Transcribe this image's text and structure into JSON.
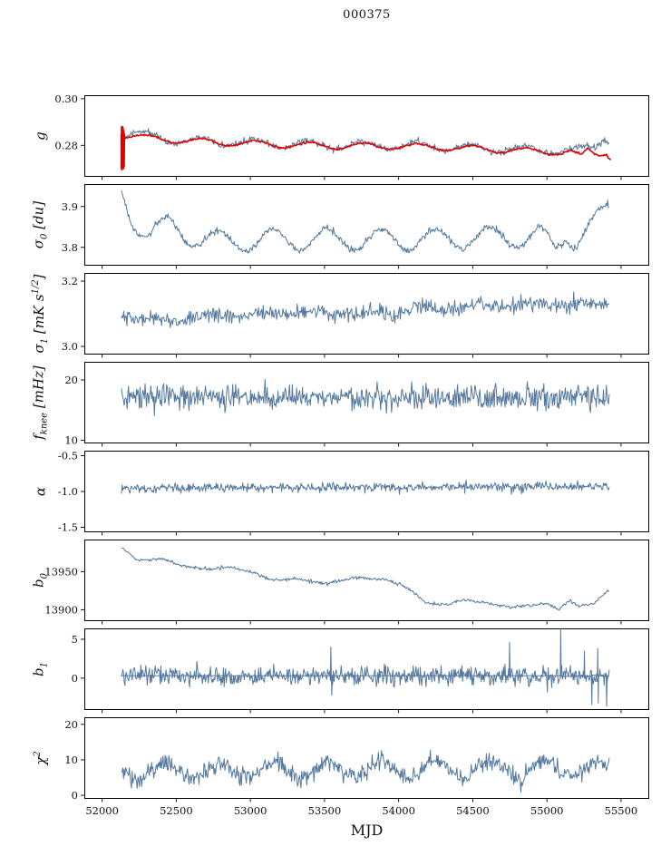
{
  "chart_data": {
    "type": "line",
    "title": "000375",
    "xlabel": "MJD",
    "legend": "none",
    "grid": false,
    "line_color": "#54789e",
    "fit_color": "#e10000",
    "axis_color": "#000000",
    "x_axis": {
      "lim": [
        51880,
        55690
      ],
      "ticks": [
        {
          "v": 52000,
          "label": "52000"
        },
        {
          "v": 52500,
          "label": "52500"
        },
        {
          "v": 53000,
          "label": "53000"
        },
        {
          "v": 53500,
          "label": "53500"
        },
        {
          "v": 54000,
          "label": "54000"
        },
        {
          "v": 54500,
          "label": "54500"
        },
        {
          "v": 55000,
          "label": "55000"
        },
        {
          "v": 55500,
          "label": "55500"
        }
      ]
    },
    "panels": [
      {
        "id": "g",
        "ylabel": [
          {
            "t": "g"
          }
        ],
        "ylim": [
          0.2665,
          0.3015
        ],
        "yticks": [
          {
            "v": 0.28,
            "label": "0.28"
          },
          {
            "v": 0.3,
            "label": "0.30"
          }
        ],
        "series": [
          {
            "name": "gain",
            "color": "#54789e",
            "width": 1,
            "mode": "sampled",
            "n": 650,
            "noise": 0.0007,
            "seed": 11,
            "osc": {
              "amp": 0.0017,
              "period": 365,
              "phase": 52205
            },
            "trend": [
              [
                52130,
                0.2846
              ],
              [
                52200,
                0.2852
              ],
              [
                52350,
                0.2838
              ],
              [
                52600,
                0.282
              ],
              [
                52900,
                0.2812
              ],
              [
                53200,
                0.2806
              ],
              [
                53600,
                0.28
              ],
              [
                54000,
                0.28
              ],
              [
                54400,
                0.2792
              ],
              [
                54800,
                0.2782
              ],
              [
                55050,
                0.2778
              ],
              [
                55200,
                0.2778
              ],
              [
                55320,
                0.279
              ],
              [
                55380,
                0.2836
              ],
              [
                55420,
                0.2824
              ]
            ]
          },
          {
            "name": "fit-spike",
            "color": "#e10000",
            "width": 1.6,
            "mode": "anchors",
            "trend": [
              [
                52128,
                0.285
              ],
              [
                52129,
                0.27
              ],
              [
                52131,
                0.288
              ],
              [
                52133,
                0.2695
              ],
              [
                52135,
                0.2875
              ],
              [
                52137,
                0.27
              ],
              [
                52139,
                0.288
              ],
              [
                52141,
                0.2705
              ],
              [
                52143,
                0.287
              ],
              [
                52145,
                0.27
              ],
              [
                52147,
                0.286
              ],
              [
                52149,
                0.271
              ],
              [
                52151,
                0.285
              ]
            ]
          },
          {
            "name": "fit",
            "color": "#e10000",
            "width": 1.6,
            "mode": "sampled",
            "n": 460,
            "noise": 0.0002,
            "seed": 12,
            "osc": {
              "amp": 0.0013,
              "period": 365,
              "phase": 52215
            },
            "trend": [
              [
                52128,
                0.2848
              ],
              [
                52300,
                0.2832
              ],
              [
                52600,
                0.2818
              ],
              [
                52900,
                0.281
              ],
              [
                53200,
                0.2803
              ],
              [
                53600,
                0.2797
              ],
              [
                54000,
                0.2797
              ],
              [
                54400,
                0.2789
              ],
              [
                54800,
                0.2778
              ],
              [
                55050,
                0.2772
              ],
              [
                55150,
                0.2776
              ],
              [
                55230,
                0.2748
              ],
              [
                55280,
                0.2778
              ],
              [
                55340,
                0.276
              ],
              [
                55400,
                0.2772
              ],
              [
                55430,
                0.275
              ]
            ]
          }
        ]
      },
      {
        "id": "sigma0",
        "ylabel": [
          {
            "t": "σ"
          },
          {
            "t": "0",
            "style": "sub"
          },
          {
            "t": " [du]"
          }
        ],
        "ylim": [
          3.755,
          3.955
        ],
        "yticks": [
          {
            "v": 3.8,
            "label": "3.8"
          },
          {
            "v": 3.9,
            "label": "3.9"
          }
        ],
        "series": [
          {
            "name": "sigma0",
            "color": "#54789e",
            "width": 1,
            "mode": "sampled",
            "n": 650,
            "noise": 0.004,
            "seed": 21,
            "osc": {
              "amp": 0.026,
              "period": 365,
              "phase": 52330
            },
            "trend": [
              [
                52130,
                3.932
              ],
              [
                52200,
                3.874
              ],
              [
                52300,
                3.836
              ],
              [
                52450,
                3.852
              ],
              [
                52600,
                3.828
              ],
              [
                52800,
                3.812
              ],
              [
                53100,
                3.818
              ],
              [
                53500,
                3.82
              ],
              [
                53900,
                3.818
              ],
              [
                54300,
                3.82
              ],
              [
                54700,
                3.826
              ],
              [
                54950,
                3.828
              ],
              [
                55060,
                3.796
              ],
              [
                55130,
                3.836
              ],
              [
                55200,
                3.818
              ],
              [
                55300,
                3.85
              ],
              [
                55420,
                3.898
              ]
            ]
          }
        ]
      },
      {
        "id": "sigma1",
        "ylabel": [
          {
            "t": "σ"
          },
          {
            "t": "1",
            "style": "sub"
          },
          {
            "t": " [mK s"
          },
          {
            "t": "1/2",
            "style": "sup"
          },
          {
            "t": "]"
          }
        ],
        "ylim": [
          2.975,
          3.225
        ],
        "yticks": [
          {
            "v": 3.0,
            "label": "3.0"
          },
          {
            "v": 3.2,
            "label": "3.2"
          }
        ],
        "series": [
          {
            "name": "sigma1",
            "color": "#54789e",
            "width": 1,
            "mode": "sampled",
            "n": 620,
            "noise": 0.012,
            "seed": 31,
            "osc": {
              "amp": 0.006,
              "period": 365,
              "phase": 52250
            },
            "trend": [
              [
                52130,
                3.09
              ],
              [
                52500,
                3.082
              ],
              [
                52900,
                3.095
              ],
              [
                53300,
                3.103
              ],
              [
                53700,
                3.098
              ],
              [
                54100,
                3.112
              ],
              [
                54500,
                3.125
              ],
              [
                54900,
                3.132
              ],
              [
                55200,
                3.128
              ],
              [
                55420,
                3.13
              ]
            ]
          }
        ]
      },
      {
        "id": "fknee",
        "ylabel": [
          {
            "t": "f"
          },
          {
            "t": "knee",
            "style": "sub"
          },
          {
            "t": " [mHz]"
          }
        ],
        "ylim": [
          9.5,
          23.0
        ],
        "yticks": [
          {
            "v": 10,
            "label": "10"
          },
          {
            "v": 20,
            "label": "20"
          }
        ],
        "series": [
          {
            "name": "fknee",
            "color": "#54789e",
            "width": 1,
            "mode": "sampled",
            "n": 680,
            "noise": 1.05,
            "seed": 41,
            "trend": [
              [
                52130,
                17.3
              ],
              [
                53000,
                17.1
              ],
              [
                54000,
                17.2
              ],
              [
                55420,
                16.9
              ]
            ]
          }
        ]
      },
      {
        "id": "alpha",
        "ylabel": [
          {
            "t": "α"
          }
        ],
        "ylim": [
          -1.57,
          -0.43
        ],
        "yticks": [
          {
            "v": -0.5,
            "label": "-0.5"
          },
          {
            "v": -1.0,
            "label": "-1.0"
          },
          {
            "v": -1.5,
            "label": "-1.5"
          }
        ],
        "series": [
          {
            "name": "alpha",
            "color": "#54789e",
            "width": 1,
            "mode": "sampled",
            "n": 680,
            "noise": 0.032,
            "seed": 51,
            "trend": [
              [
                52130,
                -0.952
              ],
              [
                53500,
                -0.945
              ],
              [
                54500,
                -0.935
              ],
              [
                55420,
                -0.93
              ]
            ]
          }
        ]
      },
      {
        "id": "b0",
        "ylabel": [
          {
            "t": "b"
          },
          {
            "t": "0",
            "style": "sub"
          }
        ],
        "ylim": [
          13885,
          13992
        ],
        "yticks": [
          {
            "v": 13900,
            "label": "13900"
          },
          {
            "v": 13950,
            "label": "13950"
          }
        ],
        "series": [
          {
            "name": "b0",
            "color": "#54789e",
            "width": 1,
            "mode": "sampled",
            "n": 600,
            "noise": 1.1,
            "seed": 61,
            "trend": [
              [
                52130,
                13981
              ],
              [
                52250,
                13964
              ],
              [
                52400,
                13967
              ],
              [
                52550,
                13957
              ],
              [
                52700,
                13953
              ],
              [
                52850,
                13956
              ],
              [
                53000,
                13950
              ],
              [
                53150,
                13938
              ],
              [
                53300,
                13941
              ],
              [
                53500,
                13934
              ],
              [
                53700,
                13942
              ],
              [
                53900,
                13940
              ],
              [
                54050,
                13930
              ],
              [
                54180,
                13910
              ],
              [
                54300,
                13906
              ],
              [
                54450,
                13913
              ],
              [
                54600,
                13909
              ],
              [
                54750,
                13903
              ],
              [
                54900,
                13906
              ],
              [
                55000,
                13908
              ],
              [
                55080,
                13901
              ],
              [
                55150,
                13912
              ],
              [
                55220,
                13904
              ],
              [
                55320,
                13909
              ],
              [
                55420,
                13927
              ]
            ]
          }
        ]
      },
      {
        "id": "b1",
        "ylabel": [
          {
            "t": "b"
          },
          {
            "t": "1",
            "style": "sub"
          }
        ],
        "ylim": [
          -4.1,
          6.4
        ],
        "yticks": [
          {
            "v": 0,
            "label": "0"
          },
          {
            "v": 5,
            "label": "5"
          }
        ],
        "series": [
          {
            "name": "b1",
            "color": "#54789e",
            "width": 1,
            "mode": "sampled",
            "n": 680,
            "noise": 0.62,
            "seed": 71,
            "trend": [
              [
                52130,
                0.35
              ],
              [
                53500,
                0.3
              ],
              [
                54500,
                0.3
              ],
              [
                55300,
                0.25
              ],
              [
                55420,
                0.3
              ]
            ]
          },
          {
            "name": "b1-spikes",
            "color": "#54789e",
            "width": 1,
            "mode": "anchors",
            "trend": [
              [
                52130,
                0.3
              ],
              [
                53540,
                0.3
              ],
              [
                53543,
                4.0
              ],
              [
                53546,
                0.2
              ],
              [
                53549,
                -2.2
              ],
              [
                53552,
                0.3
              ],
              [
                54745,
                0.3
              ],
              [
                54748,
                4.6
              ],
              [
                54751,
                0.3
              ],
              [
                55090,
                0.3
              ],
              [
                55093,
                6.3
              ],
              [
                55096,
                0.2
              ],
              [
                55250,
                0.3
              ],
              [
                55253,
                3.5
              ],
              [
                55256,
                0.2
              ],
              [
                55300,
                0.3
              ],
              [
                55303,
                -3.4
              ],
              [
                55306,
                0.4
              ],
              [
                55340,
                0.3
              ],
              [
                55343,
                3.8
              ],
              [
                55346,
                -3.2
              ],
              [
                55349,
                0.3
              ],
              [
                55400,
                0.2
              ],
              [
                55403,
                -3.6
              ],
              [
                55406,
                0.3
              ],
              [
                55420,
                0.3
              ]
            ]
          }
        ]
      },
      {
        "id": "chi2",
        "ylabel": [
          {
            "t": "χ"
          },
          {
            "t": "2",
            "style": "sup"
          }
        ],
        "ylim": [
          -1.0,
          22.0
        ],
        "yticks": [
          {
            "v": 0,
            "label": "0"
          },
          {
            "v": 10,
            "label": "10"
          },
          {
            "v": 20,
            "label": "20"
          }
        ],
        "series": [
          {
            "name": "chi2",
            "color": "#54789e",
            "width": 1,
            "mode": "sampled",
            "n": 680,
            "noise": 1.25,
            "seed": 81,
            "osc": {
              "amp": 2.3,
              "period": 365,
              "phase": 52335
            },
            "trend": [
              [
                52130,
                6.8
              ],
              [
                53000,
                7.0
              ],
              [
                54000,
                7.2
              ],
              [
                55000,
                7.3
              ],
              [
                55420,
                7.5
              ]
            ]
          }
        ]
      }
    ]
  }
}
